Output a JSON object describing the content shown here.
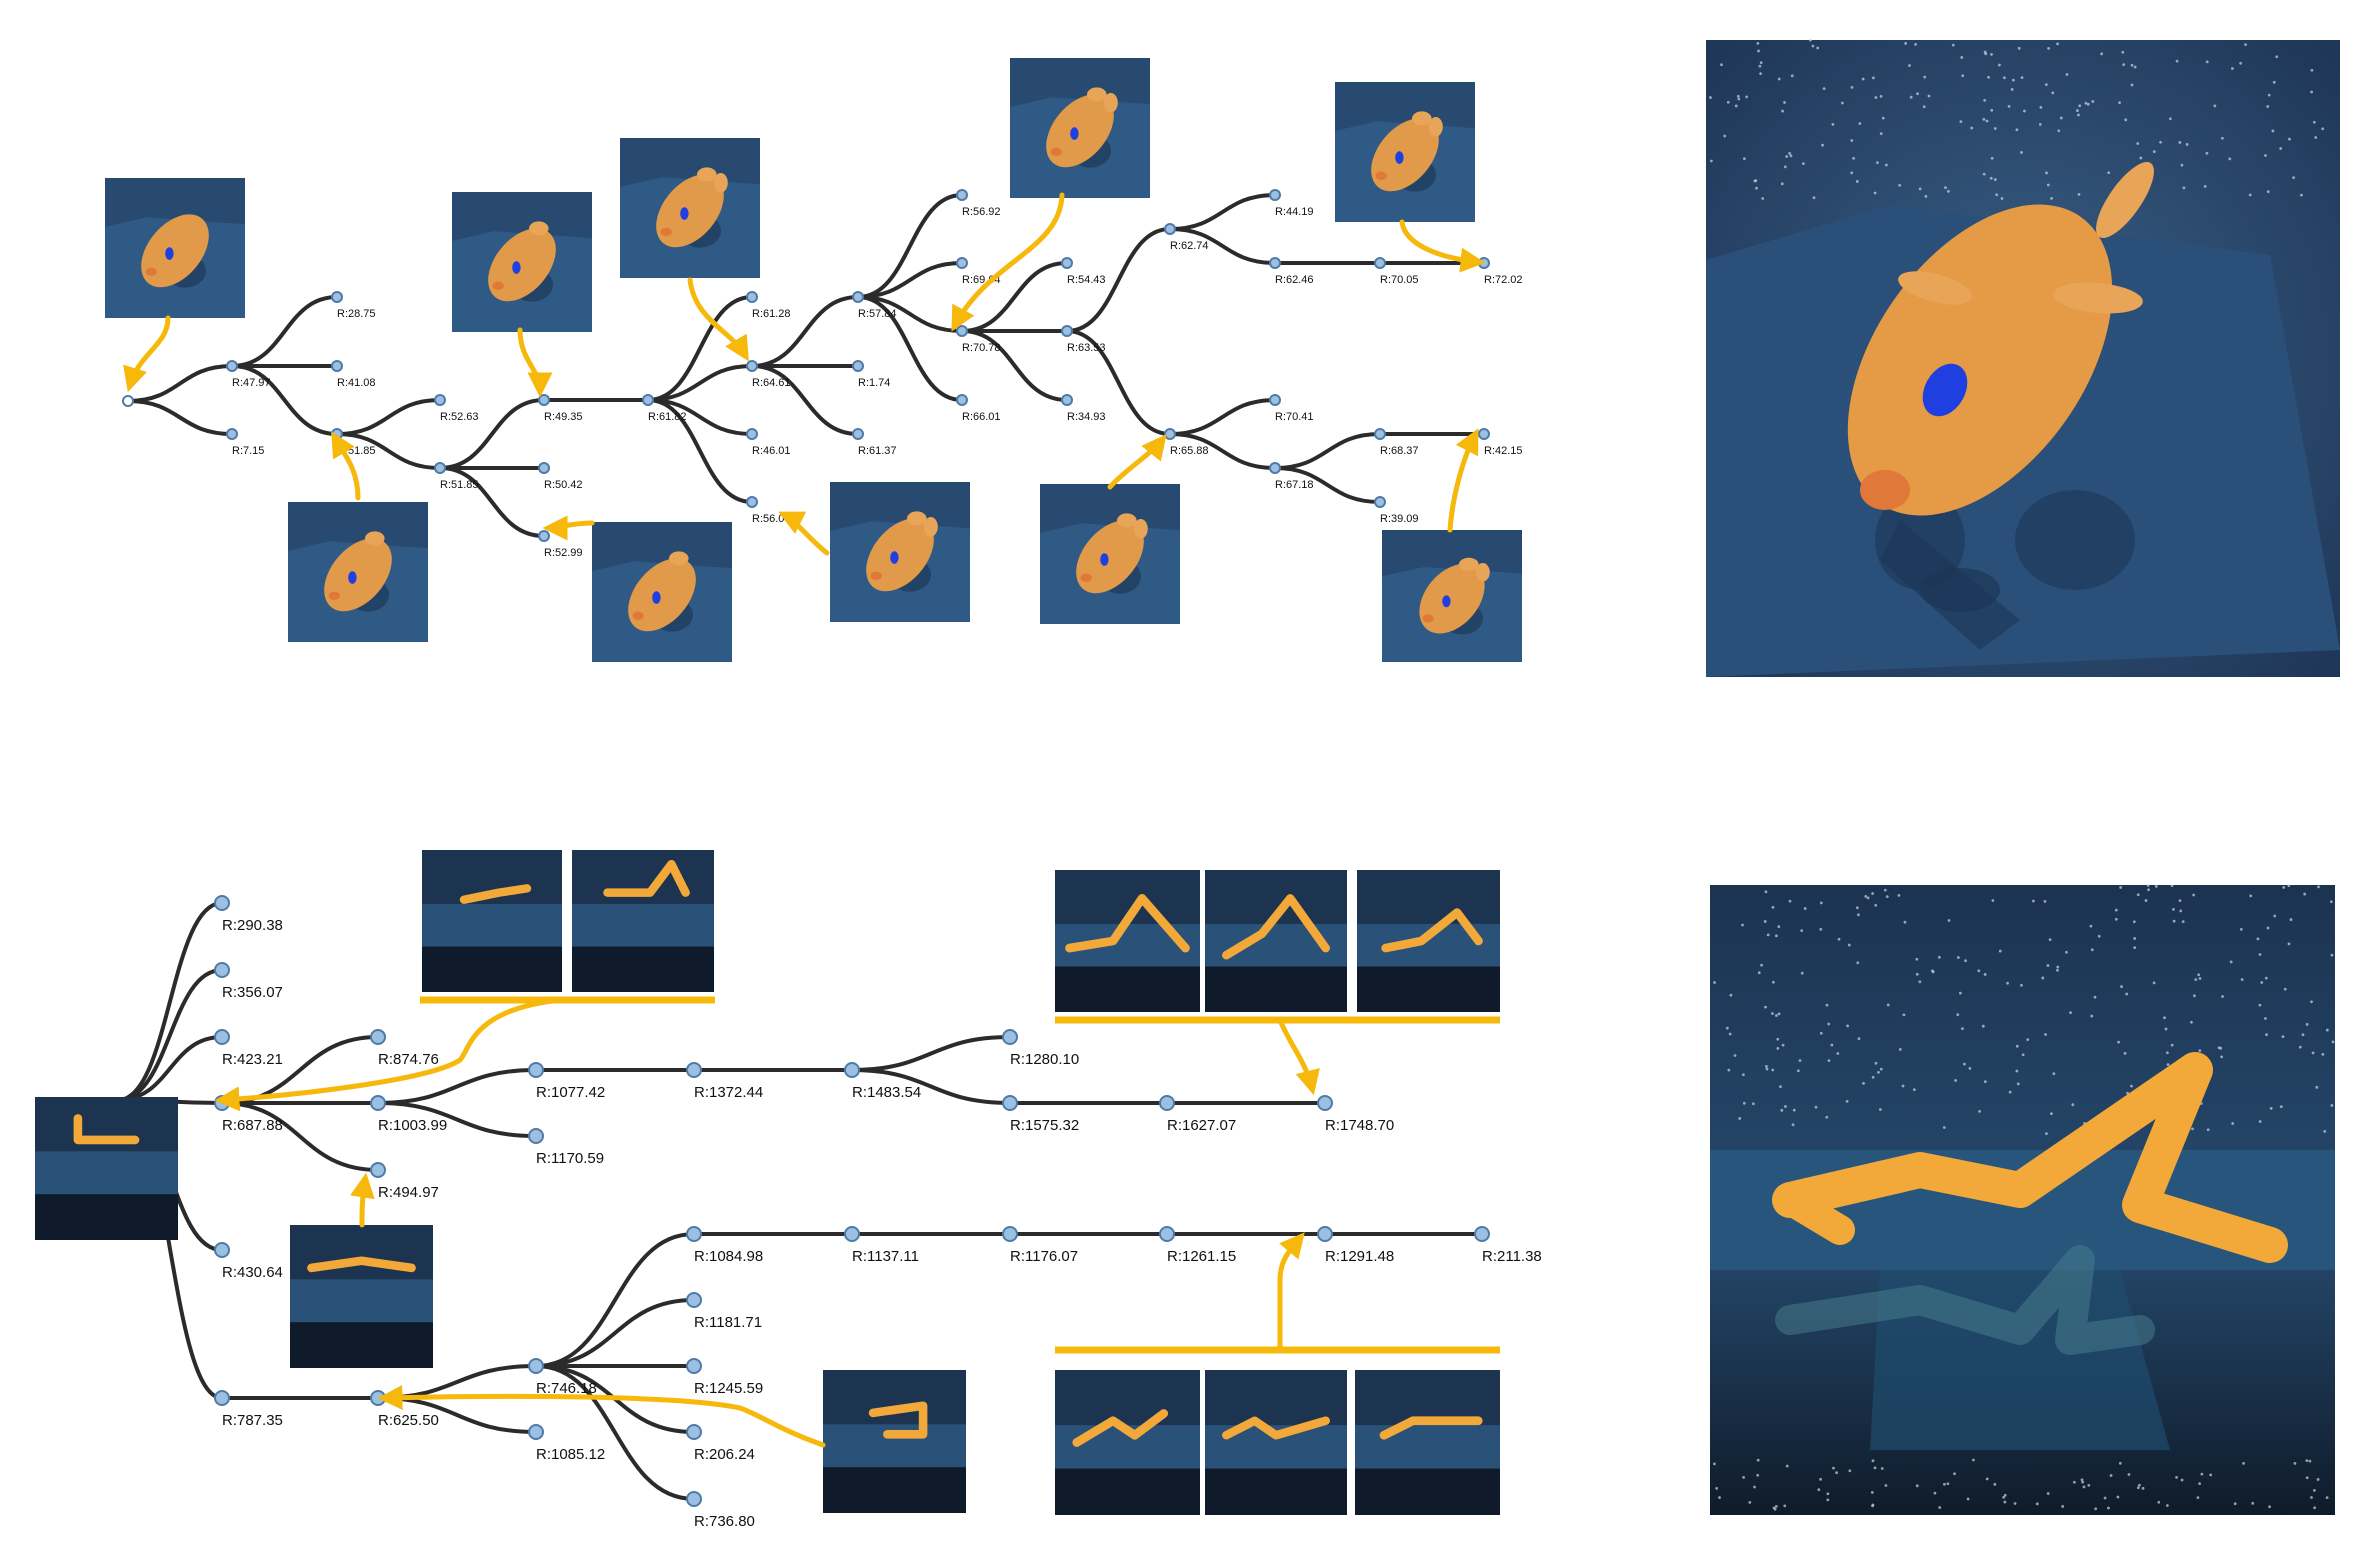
{
  "colors": {
    "edge": "#2b2b2b",
    "node_fill": "#9cc0e3",
    "node_stroke": "#4f7aa6",
    "arrow": "#f5b80b",
    "frame_bg": "#2b4d74",
    "creature_body": "#e8a24a",
    "creature_eye": "#1f3fe0"
  },
  "icons": {
    "creature": "creature-agent-thumbnail",
    "walker": "walker-agent-thumbnail"
  },
  "top_tree": {
    "root_label": "",
    "labels": {
      "n1": "R:47.97",
      "n2": "R:7.15",
      "n3": "R:28.75",
      "n4": "R:41.08",
      "n5": "R:51.85",
      "n6": "R:52.63",
      "n7": "R:51.85",
      "n8": "R:49.35",
      "n9": "R:50.42",
      "n10": "R:52.99",
      "n11": "R:61.82",
      "n12": "R:61.28",
      "n13": "R:64.61",
      "n14": "R:46.01",
      "n15": "R:56.04",
      "n16": "R:57.84",
      "n17": "R:1.74",
      "n18": "R:61.37",
      "n19": "R:56.92",
      "n20": "R:69.64",
      "n21": "R:70.78",
      "n22": "R:66.01",
      "n23": "R:54.43",
      "n24": "R:63.53",
      "n25": "R:34.93",
      "n26": "R:62.74",
      "n27": "R:44.19",
      "n28": "R:62.46",
      "n29": "R:70.05",
      "n30": "R:72.02",
      "n31": "R:65.88",
      "n32": "R:70.41",
      "n33": "R:67.18",
      "n34": "R:68.37",
      "n35": "R:42.15",
      "n36": "R:39.09"
    }
  },
  "bottom_tree": {
    "labels": {
      "b1": "R:290.38",
      "b2": "R:356.07",
      "b3": "R:423.21",
      "b4": "R:687.88",
      "b5": "R:430.64",
      "b6": "R:787.35",
      "b7": "R:874.76",
      "b8": "R:1003.99",
      "b9": "R:494.97",
      "b10": "R:1077.42",
      "b11": "R:1170.59",
      "b12": "R:1372.44",
      "b13": "R:1483.54",
      "b14": "R:1280.10",
      "b15": "R:1575.32",
      "b16": "R:1627.07",
      "b17": "R:1748.70",
      "b18": "R:625.50",
      "b19": "R:746.18",
      "b20": "R:1085.12",
      "b21": "R:1084.98",
      "b22": "R:1137.11",
      "b23": "R:1176.07",
      "b24": "R:1261.15",
      "b25": "R:1291.48",
      "b26": "R:211.38",
      "b27": "R:1181.71",
      "b28": "R:1245.59",
      "b29": "R:206.24",
      "b30": "R:736.80"
    }
  }
}
